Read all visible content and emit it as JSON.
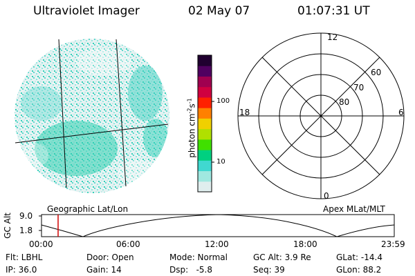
{
  "header": {
    "instrument": "Ultraviolet Imager",
    "date": "02 May 07",
    "time": "01:07:31 UT"
  },
  "colorbar": {
    "label": "photon cm",
    "exp1": "-2",
    "mid": "s",
    "exp2": "-1",
    "ticks": [
      "100",
      "10"
    ],
    "colors": [
      "#e0eeee",
      "#a0e8e0",
      "#40d8d0",
      "#00d080",
      "#40e000",
      "#b0e000",
      "#f0d000",
      "#ff8000",
      "#ff2000",
      "#d00040",
      "#a00050",
      "#500060",
      "#200030"
    ]
  },
  "polar": {
    "mlt_labels": {
      "top": "12",
      "left": "18",
      "right": "6",
      "bottom": "0"
    },
    "lat_labels": [
      "60",
      "70",
      "80"
    ]
  },
  "timeline": {
    "axis_label": "GC Alt",
    "y_ticks": [
      "9.0",
      "1.8"
    ],
    "left_title": "Geographic Lat/Lon",
    "right_title": "Apex MLat/MLT",
    "x_ticks": [
      "00:00",
      "06:00",
      "12:00",
      "18:00",
      "23:59"
    ],
    "marker_color": "#d00000"
  },
  "info": {
    "flt": "Flt: LBHL",
    "ip": "IP: 36.0",
    "door": "Door: Open",
    "gain": "Gain: 14",
    "mode": "Mode: Normal",
    "dsp": "Dsp:   -5.8",
    "gcalt": "GC Alt: 3.9 Re",
    "seq": "Seq: 39",
    "glat": "GLat: -14.4",
    "glon": "GLon: 88.2"
  }
}
